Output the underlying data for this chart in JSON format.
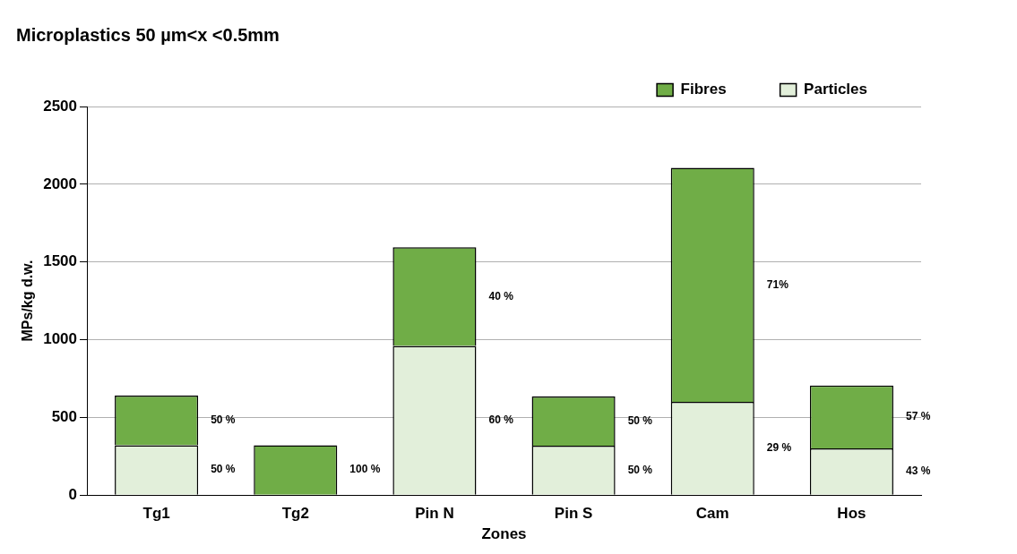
{
  "chart_data": {
    "type": "bar",
    "title": "Microplastics 50 µm<x <0.5mm",
    "xlabel": "Zones",
    "ylabel": "MPs/kg d.w.",
    "categories": [
      "Tg1",
      "Tg2",
      "Pin N",
      "Pin S",
      "Cam",
      "Hos"
    ],
    "stacked": true,
    "ylim": [
      0,
      2500
    ],
    "yticks": [
      0,
      500,
      1000,
      1500,
      2000,
      2500
    ],
    "grid": "y",
    "legend": "top right",
    "series": [
      {
        "name": "Particles",
        "color": "#e2efda",
        "values": [
          320,
          null,
          960,
          318,
          600,
          300
        ]
      },
      {
        "name": "Fibres",
        "color": "#70ad47",
        "values": [
          320,
          320,
          635,
          317,
          1505,
          405
        ]
      }
    ],
    "annotations": [
      "50 %",
      "50 %",
      "100 %",
      "60 %",
      "40 %",
      "50 %",
      "50 %",
      "29 %",
      "71%",
      "43 %",
      "57 %"
    ]
  }
}
